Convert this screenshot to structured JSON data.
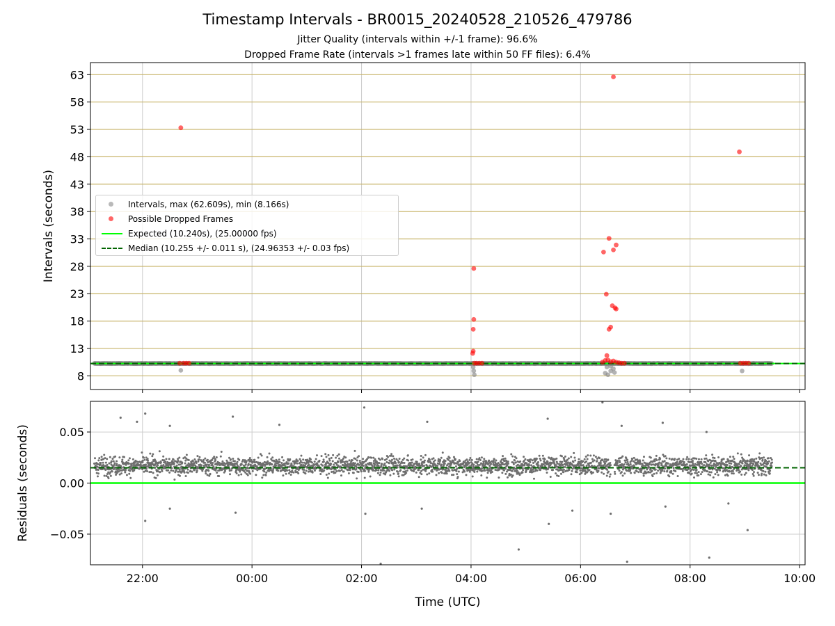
{
  "title": "Timestamp Intervals - BR0015_20240528_210526_479786",
  "subtitle_1": "Jitter Quality (intervals within +/-1 frame): 96.6%",
  "subtitle_2": "Dropped Frame Rate (intervals >1 frames late within 50 FF files): 6.4%",
  "colors": {
    "interval_points": "#808080",
    "dropped_points": "#ff0000",
    "expected_line": "#00ff00",
    "median_line": "#006400",
    "y_grid_top": "#c8b46a",
    "x_grid": "#cccccc"
  },
  "legend": {
    "intervals": "Intervals, max (62.609s), min (8.166s)",
    "dropped": "Possible Dropped Frames",
    "expected": "Expected (10.240s), (25.00000 fps)",
    "median": "Median (10.255 +/- 0.011 s), (24.96353 +/- 0.03 fps)"
  },
  "chart_data": [
    {
      "type": "scatter",
      "ylabel": "Intervals (seconds)",
      "xlabel": "",
      "x_unit": "hours since 00:00 UTC (negative = previous day)",
      "xlim": [
        -2.95,
        10.1
      ],
      "ylim": [
        5.5,
        65.2
      ],
      "yticks": [
        8,
        13,
        18,
        23,
        28,
        33,
        38,
        43,
        48,
        53,
        58,
        63
      ],
      "xticks": [
        "22:00",
        "00:00",
        "02:00",
        "04:00",
        "06:00",
        "08:00",
        "10:00"
      ],
      "xtick_values": [
        -2,
        0,
        2,
        4,
        6,
        8,
        10
      ],
      "x_range_data": [
        -2.88,
        9.5
      ],
      "expected_interval": 10.24,
      "median_interval": 10.255,
      "series": [
        {
          "name": "Intervals, max (62.609s), min (8.166s)",
          "points": [
            [
              -1.3,
              9.0
            ],
            [
              4.05,
              8.9
            ],
            [
              4.06,
              8.2
            ],
            [
              4.04,
              9.6
            ],
            [
              6.45,
              8.5
            ],
            [
              6.5,
              8.2
            ],
            [
              6.55,
              8.9
            ],
            [
              6.6,
              9.3
            ],
            [
              6.62,
              8.6
            ],
            [
              6.48,
              9.6
            ],
            [
              6.55,
              9.8
            ],
            [
              8.95,
              8.9
            ]
          ]
        },
        {
          "name": "Possible Dropped Frames",
          "points": [
            [
              -1.3,
              53.3
            ],
            [
              -1.32,
              10.3
            ],
            [
              -1.25,
              10.3
            ],
            [
              -1.2,
              10.3
            ],
            [
              -1.15,
              10.3
            ],
            [
              4.05,
              27.6
            ],
            [
              4.05,
              18.3
            ],
            [
              4.04,
              16.5
            ],
            [
              4.04,
              12.5
            ],
            [
              4.03,
              12.1
            ],
            [
              4.06,
              10.3
            ],
            [
              4.1,
              10.3
            ],
            [
              4.15,
              10.3
            ],
            [
              4.2,
              10.3
            ],
            [
              6.42,
              30.6
            ],
            [
              6.52,
              33.1
            ],
            [
              6.6,
              31.0
            ],
            [
              6.65,
              31.9
            ],
            [
              6.47,
              22.9
            ],
            [
              6.58,
              20.8
            ],
            [
              6.63,
              20.4
            ],
            [
              6.65,
              20.2
            ],
            [
              6.52,
              16.5
            ],
            [
              6.55,
              16.9
            ],
            [
              6.48,
              11.7
            ],
            [
              6.6,
              62.6
            ],
            [
              6.4,
              10.5
            ],
            [
              6.45,
              10.8
            ],
            [
              6.5,
              10.9
            ],
            [
              6.55,
              10.6
            ],
            [
              6.6,
              10.7
            ],
            [
              6.65,
              10.5
            ],
            [
              6.7,
              10.4
            ],
            [
              6.75,
              10.3
            ],
            [
              6.8,
              10.3
            ],
            [
              8.9,
              48.9
            ],
            [
              8.92,
              10.3
            ],
            [
              8.97,
              10.3
            ],
            [
              9.02,
              10.3
            ],
            [
              9.07,
              10.3
            ]
          ]
        }
      ]
    },
    {
      "type": "scatter",
      "ylabel": "Residuals (seconds)",
      "xlabel": "Time (UTC)",
      "x_unit": "hours since 00:00 UTC (negative = previous day)",
      "xlim": [
        -2.95,
        10.1
      ],
      "ylim": [
        -0.08,
        0.08
      ],
      "yticks": [
        -0.05,
        0.0,
        0.05
      ],
      "ytick_labels": [
        "−0.05",
        "0.00",
        "0.05"
      ],
      "xticks": [
        "22:00",
        "00:00",
        "02:00",
        "04:00",
        "06:00",
        "08:00",
        "10:00"
      ],
      "xtick_values": [
        -2,
        0,
        2,
        4,
        6,
        8,
        10
      ],
      "zero_line": 0.0,
      "median_residual": 0.015,
      "residual_band": {
        "center": 0.017,
        "spread": 0.011,
        "x_start": -2.88,
        "x_end": 9.5,
        "gap": [
          6.55,
          6.62
        ]
      },
      "outliers": [
        [
          -2.4,
          0.064
        ],
        [
          -2.1,
          0.06
        ],
        [
          -1.95,
          0.068
        ],
        [
          -1.5,
          0.056
        ],
        [
          -0.35,
          0.065
        ],
        [
          0.5,
          0.057
        ],
        [
          2.05,
          0.074
        ],
        [
          3.2,
          0.06
        ],
        [
          5.4,
          0.063
        ],
        [
          6.4,
          0.079
        ],
        [
          6.75,
          0.056
        ],
        [
          7.5,
          0.059
        ],
        [
          8.3,
          0.05
        ],
        [
          -1.95,
          -0.037
        ],
        [
          -1.5,
          -0.025
        ],
        [
          -0.3,
          -0.029
        ],
        [
          2.07,
          -0.03
        ],
        [
          2.35,
          -0.079
        ],
        [
          4.87,
          -0.065
        ],
        [
          5.42,
          -0.04
        ],
        [
          5.85,
          -0.027
        ],
        [
          6.55,
          -0.03
        ],
        [
          6.85,
          -0.077
        ],
        [
          7.55,
          -0.023
        ],
        [
          8.35,
          -0.073
        ],
        [
          9.05,
          -0.046
        ],
        [
          8.7,
          -0.02
        ],
        [
          3.1,
          -0.025
        ]
      ]
    }
  ]
}
